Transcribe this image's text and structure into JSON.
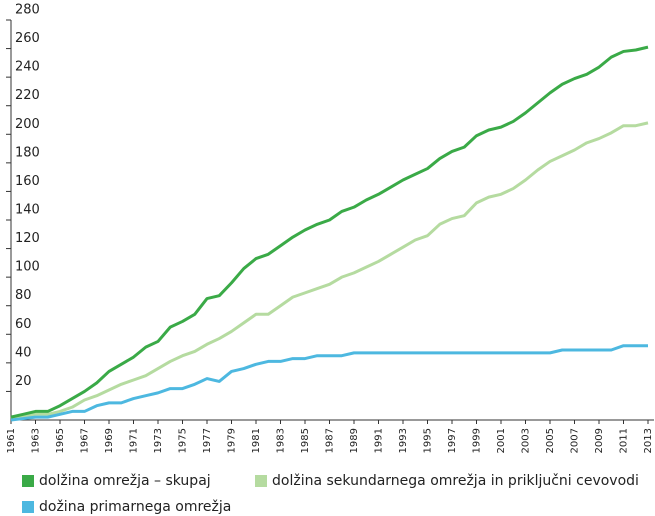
{
  "chart_data": {
    "type": "line",
    "x": [
      1961,
      1962,
      1963,
      1964,
      1965,
      1966,
      1967,
      1968,
      1969,
      1970,
      1971,
      1972,
      1973,
      1974,
      1975,
      1976,
      1977,
      1978,
      1979,
      1980,
      1981,
      1982,
      1983,
      1984,
      1985,
      1986,
      1987,
      1988,
      1989,
      1990,
      1991,
      1992,
      1993,
      1994,
      1995,
      1996,
      1997,
      1998,
      1999,
      2000,
      2001,
      2002,
      2003,
      2004,
      2005,
      2006,
      2007,
      2008,
      2009,
      2010,
      2011,
      2012,
      2013
    ],
    "xlim": [
      1961,
      2013
    ],
    "xticks": [
      1961,
      1963,
      1965,
      1967,
      1969,
      1971,
      1973,
      1975,
      1977,
      1979,
      1981,
      1983,
      1985,
      1987,
      1989,
      1991,
      1993,
      1995,
      1997,
      1999,
      2001,
      2003,
      2005,
      2007,
      2009,
      2011,
      2013
    ],
    "ylim": [
      0,
      280
    ],
    "yticks": [
      20,
      40,
      60,
      80,
      100,
      120,
      140,
      160,
      180,
      200,
      220,
      240,
      260,
      280
    ],
    "grid": false,
    "series": [
      {
        "name": "dolžina omrežja – skupaj",
        "color": "#3aaa47",
        "values": [
          2,
          4,
          6,
          6,
          10,
          15,
          20,
          26,
          34,
          39,
          44,
          51,
          55,
          65,
          69,
          74,
          85,
          87,
          96,
          106,
          113,
          116,
          122,
          128,
          133,
          137,
          140,
          146,
          149,
          154,
          158,
          163,
          168,
          172,
          176,
          183,
          188,
          191,
          199,
          203,
          205,
          209,
          215,
          222,
          229,
          235,
          239,
          242,
          247,
          254,
          258,
          259,
          261
        ]
      },
      {
        "name": "dolžina sekundarnega omrežja in priključni cevovodi",
        "color": "#b5dba0",
        "values": [
          1,
          2,
          4,
          4,
          6,
          9,
          14,
          17,
          21,
          25,
          28,
          31,
          36,
          41,
          45,
          48,
          53,
          57,
          62,
          68,
          74,
          74,
          80,
          86,
          89,
          92,
          95,
          100,
          103,
          107,
          111,
          116,
          121,
          126,
          129,
          137,
          141,
          143,
          152,
          156,
          158,
          162,
          168,
          175,
          181,
          185,
          189,
          194,
          197,
          201,
          206,
          206,
          208
        ]
      },
      {
        "name": "dožina primarnega omrežja",
        "color": "#4db8e0",
        "values": [
          0,
          1,
          2,
          2,
          4,
          6,
          6,
          10,
          12,
          12,
          15,
          17,
          19,
          22,
          22,
          25,
          29,
          27,
          34,
          36,
          39,
          41,
          41,
          43,
          43,
          45,
          45,
          45,
          47,
          47,
          47,
          47,
          47,
          47,
          47,
          47,
          47,
          47,
          47,
          47,
          47,
          47,
          47,
          47,
          47,
          49,
          49,
          49,
          49,
          49,
          52,
          52,
          52
        ]
      }
    ]
  }
}
